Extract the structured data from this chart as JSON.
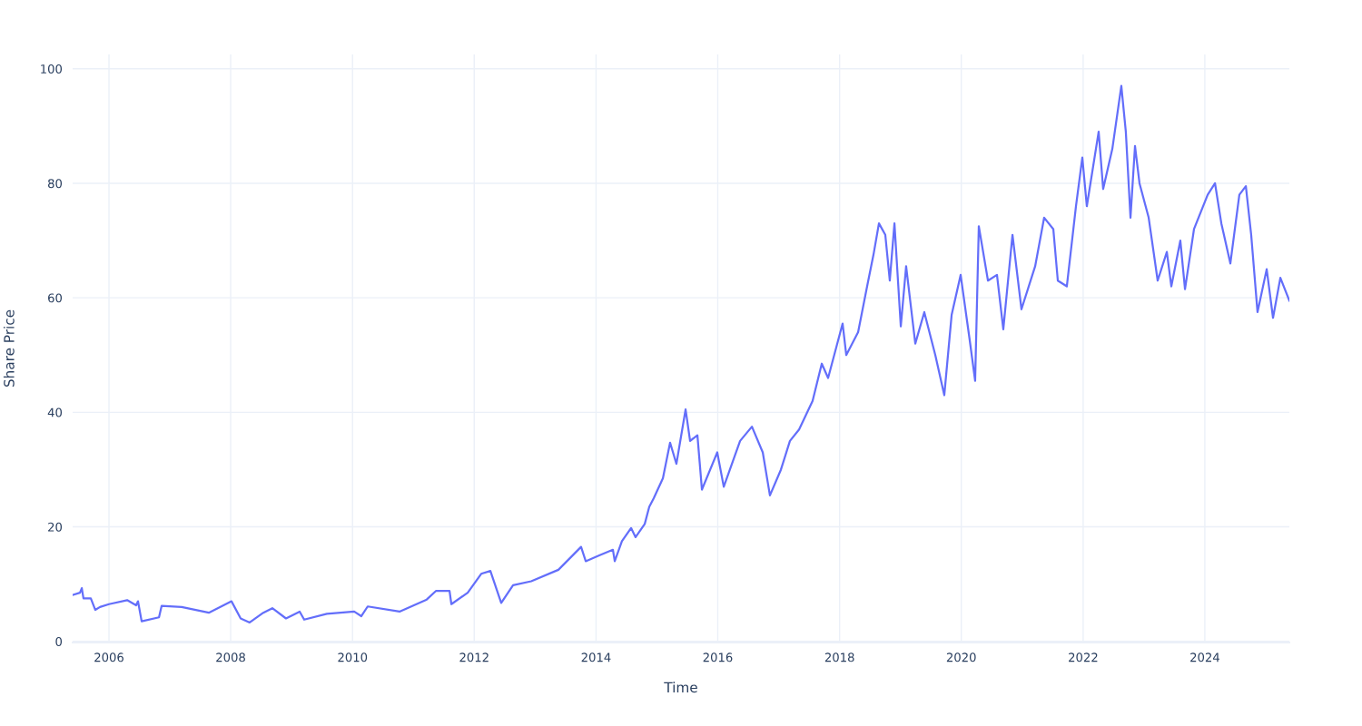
{
  "chart_data": {
    "type": "line",
    "xlabel": "Time",
    "ylabel": "Share Price",
    "grid": true,
    "x": [
      "2005-05-28",
      "2005-07-11",
      "2005-07-22",
      "2005-08-01",
      "2005-09-14",
      "2005-10-11",
      "2005-11-08",
      "2006-01-01",
      "2006-04-20",
      "2006-06-13",
      "2006-06-24",
      "2006-07-16",
      "2006-10-28",
      "2006-11-13",
      "2007-03-13",
      "2007-08-23",
      "2008-01-06",
      "2008-03-01",
      "2008-04-24",
      "2008-07-15",
      "2008-09-07",
      "2008-11-28",
      "2009-02-18",
      "2009-03-17",
      "2009-07-31",
      "2010-01-11",
      "2010-02-23",
      "2010-04-02",
      "2010-10-10",
      "2011-03-22",
      "2011-05-16",
      "2011-08-06",
      "2011-08-17",
      "2011-11-23",
      "2012-02-12",
      "2012-04-07",
      "2012-06-11",
      "2012-08-21",
      "2012-12-08",
      "2013-05-20",
      "2013-10-03",
      "2013-10-31",
      "2014-01-20",
      "2014-04-12",
      "2014-04-23",
      "2014-06-05",
      "2014-07-30",
      "2014-08-26",
      "2014-10-20",
      "2014-11-16",
      "2014-12-13",
      "2015-02-06",
      "2015-03-21",
      "2015-04-28",
      "2015-06-22",
      "2015-07-19",
      "2015-09-01",
      "2015-09-28",
      "2015-12-29",
      "2016-02-06",
      "2016-05-14",
      "2016-07-24",
      "2016-09-27",
      "2016-11-09",
      "2017-01-14",
      "2017-03-09",
      "2017-05-03",
      "2017-07-23",
      "2017-09-16",
      "2017-10-24",
      "2018-01-19",
      "2018-02-10",
      "2018-04-22",
      "2018-06-15",
      "2018-07-23",
      "2018-08-25",
      "2018-10-02",
      "2018-10-29",
      "2018-11-26",
      "2019-01-03",
      "2019-02-04",
      "2019-03-31",
      "2019-05-24",
      "2019-07-29",
      "2019-09-21",
      "2019-11-04",
      "2019-12-28",
      "2020-02-21",
      "2020-03-24",
      "2020-04-15",
      "2020-06-09",
      "2020-08-02",
      "2020-09-09",
      "2020-11-03",
      "2020-12-27",
      "2021-03-19",
      "2021-05-12",
      "2021-07-06",
      "2021-08-02",
      "2021-09-25",
      "2021-11-19",
      "2021-12-27",
      "2022-01-23",
      "2022-04-04",
      "2022-05-01",
      "2022-06-25",
      "2022-08-18",
      "2022-09-14",
      "2022-10-12",
      "2022-11-08",
      "2022-12-05",
      "2023-01-29",
      "2023-03-24",
      "2023-05-18",
      "2023-06-14",
      "2023-08-07",
      "2023-09-04",
      "2023-10-28",
      "2024-01-18",
      "2024-03-02",
      "2024-04-09",
      "2024-06-02",
      "2024-07-26",
      "2024-09-03",
      "2024-10-05",
      "2024-11-12",
      "2025-01-06",
      "2025-02-13",
      "2025-03-29",
      "2025-05-22"
    ],
    "series": [
      {
        "color": "#636efa",
        "values": [
          8.1,
          8.5,
          9.3,
          7.5,
          7.5,
          5.5,
          6.0,
          6.5,
          7.2,
          6.3,
          7.0,
          3.5,
          4.2,
          6.2,
          6.0,
          5.0,
          7.0,
          4.0,
          3.3,
          5.0,
          5.8,
          4.0,
          5.2,
          3.8,
          4.8,
          5.2,
          4.4,
          6.1,
          5.2,
          7.3,
          8.8,
          8.8,
          6.5,
          8.5,
          11.8,
          12.3,
          6.7,
          9.8,
          10.5,
          12.5,
          16.5,
          14.0,
          15.0,
          16.0,
          14.0,
          17.5,
          19.8,
          18.2,
          20.5,
          23.5,
          25.0,
          28.5,
          34.7,
          31.0,
          40.5,
          35.0,
          36.0,
          26.5,
          33.0,
          27.0,
          35.0,
          37.5,
          33.0,
          25.5,
          30.0,
          35.0,
          37.0,
          42.0,
          48.5,
          46.0,
          55.5,
          50.0,
          54.0,
          62.0,
          67.5,
          73.0,
          71.0,
          63.0,
          73.0,
          55.0,
          65.5,
          52.0,
          57.5,
          50.0,
          43.0,
          57.0,
          64.0,
          52.5,
          45.5,
          72.5,
          63.0,
          64.0,
          54.5,
          71.0,
          58.0,
          65.5,
          74.0,
          72.0,
          63.0,
          62.0,
          76.0,
          84.5,
          76.0,
          89.0,
          79.0,
          86.0,
          97.0,
          89.0,
          74.0,
          86.5,
          80.0,
          74.0,
          63.0,
          68.0,
          62.0,
          70.0,
          61.5,
          72.0,
          78.0,
          80.0,
          73.0,
          66.0,
          78.0,
          79.5,
          71.0,
          57.5,
          65.0,
          56.5,
          63.5,
          59.5
        ]
      }
    ],
    "xlim": [
      "2005-05-28",
      "2025-05-22"
    ],
    "xticks": [
      {
        "value": "2006",
        "label": "2006"
      },
      {
        "value": "2008",
        "label": "2008"
      },
      {
        "value": "2010",
        "label": "2010"
      },
      {
        "value": "2012",
        "label": "2012"
      },
      {
        "value": "2014",
        "label": "2014"
      },
      {
        "value": "2016",
        "label": "2016"
      },
      {
        "value": "2018",
        "label": "2018"
      },
      {
        "value": "2020",
        "label": "2020"
      },
      {
        "value": "2022",
        "label": "2022"
      },
      {
        "value": "2024",
        "label": "2024"
      }
    ],
    "ylim": [
      -0.2,
      102.5
    ],
    "yticks": [
      0,
      20,
      40,
      60,
      80,
      100
    ]
  }
}
